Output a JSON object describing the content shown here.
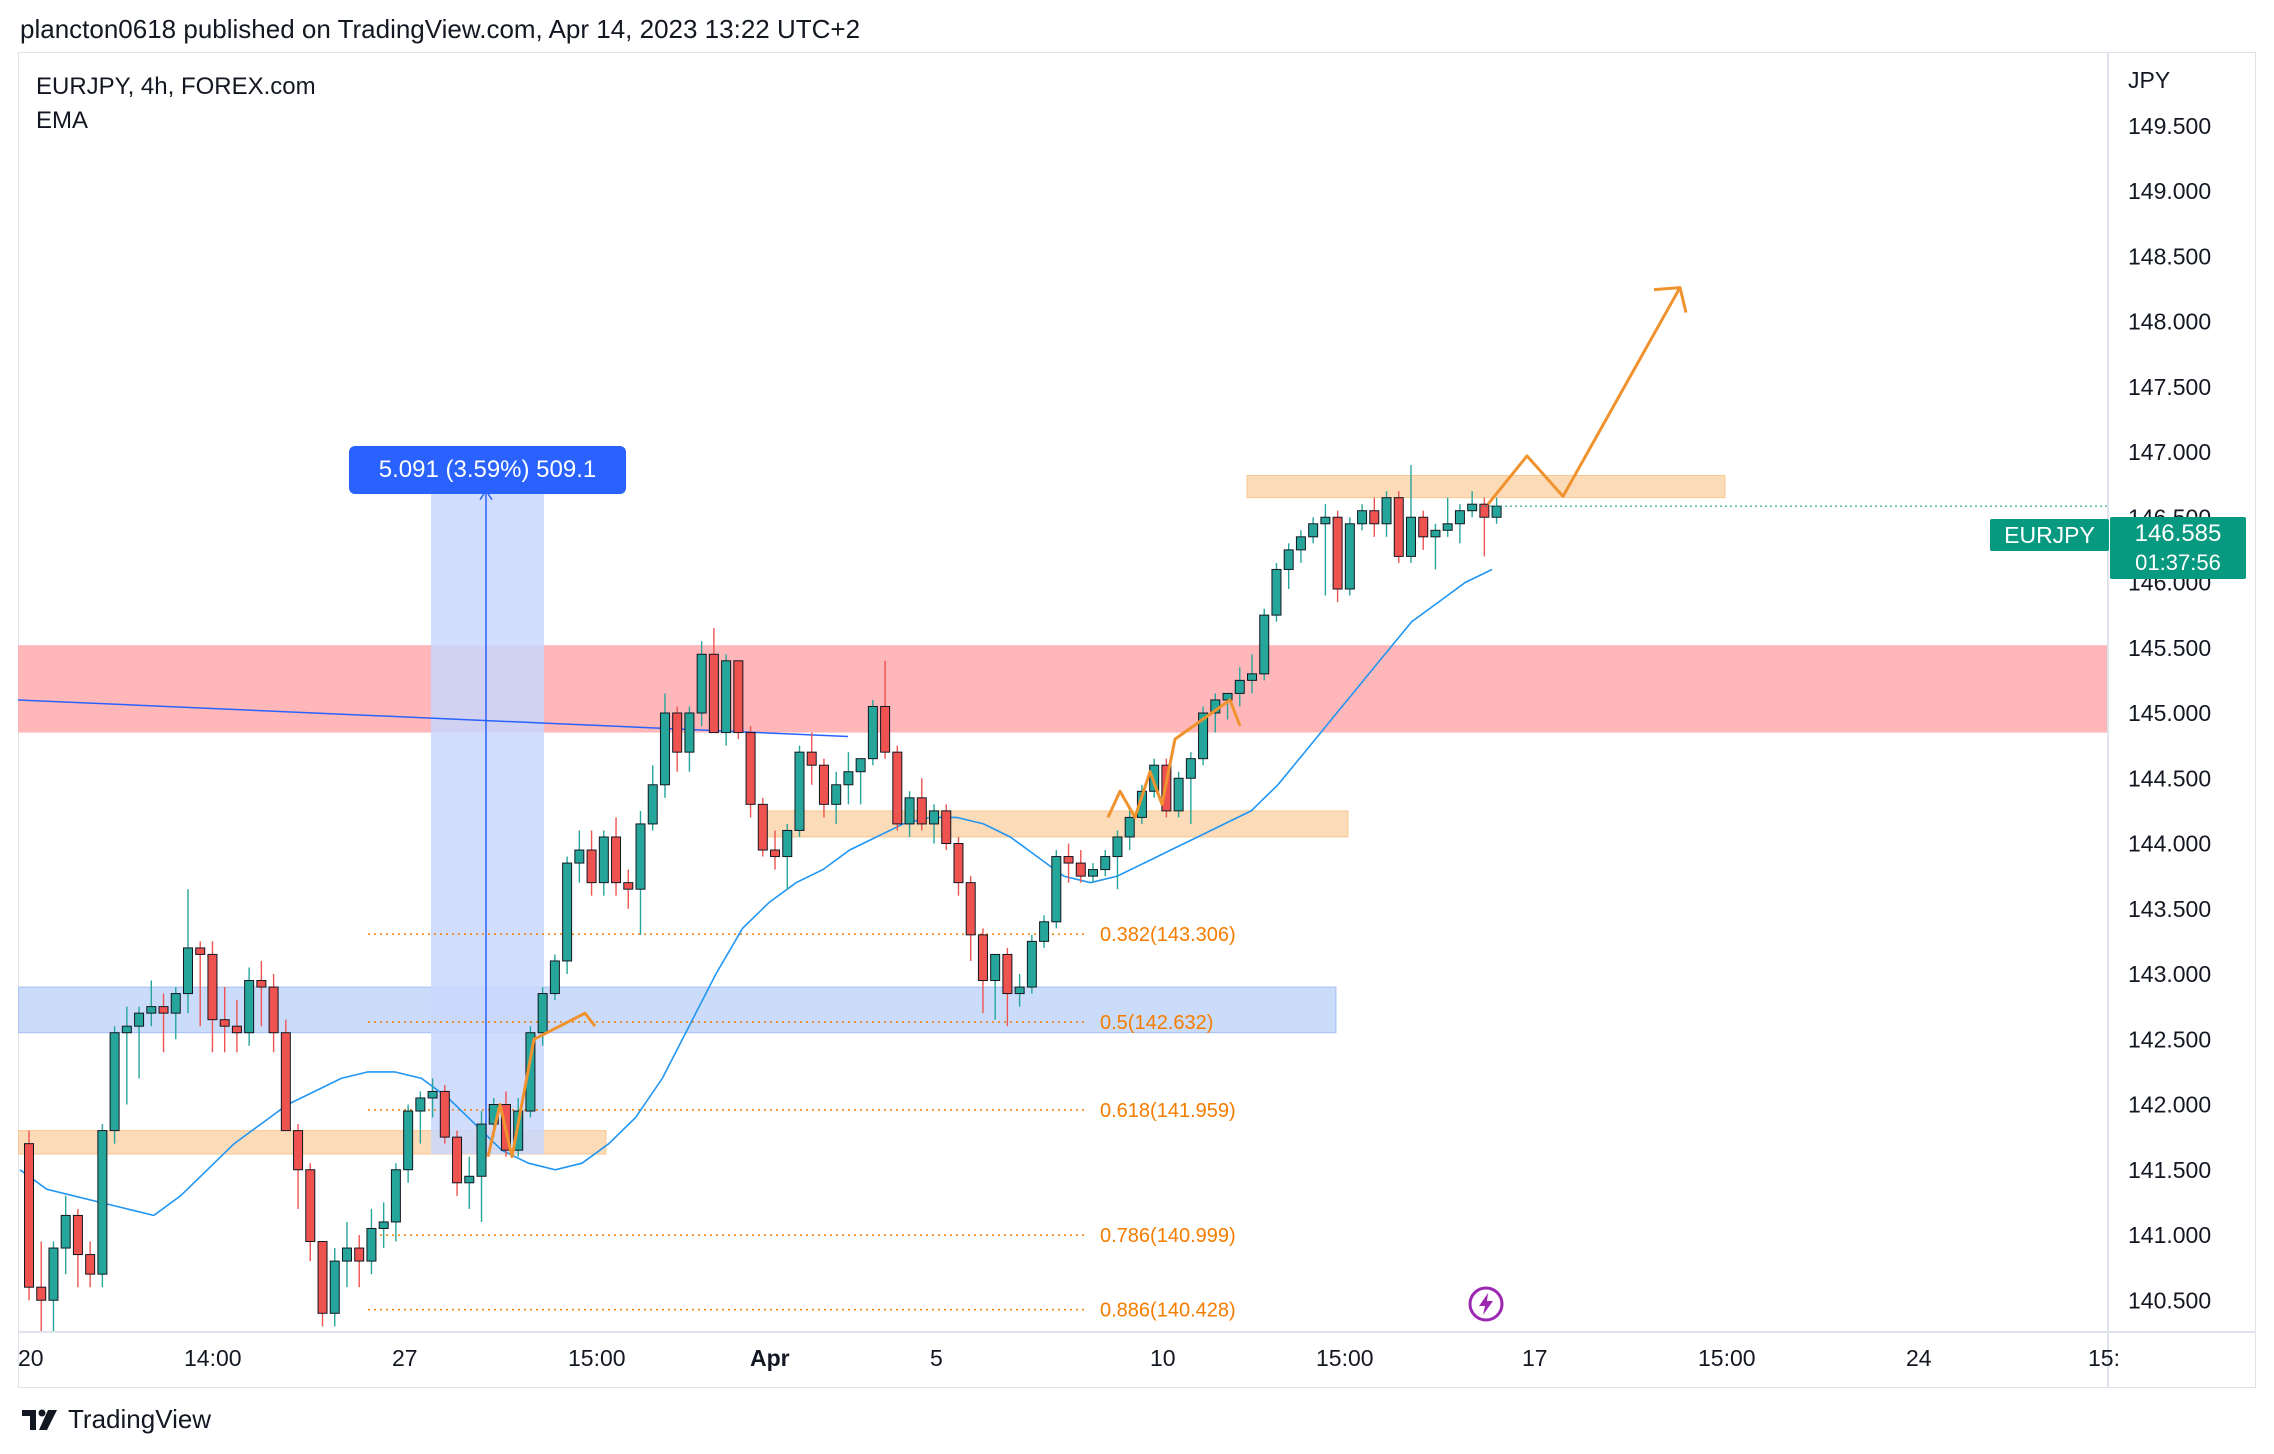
{
  "header": {
    "publish_text": "plancton0618 published on TradingView.com, Apr 14, 2023 13:22 UTC+2"
  },
  "legend": {
    "symbol_line": "EURJPY, 4h, FOREX.com",
    "indicator": "EMA"
  },
  "axis": {
    "currency_label": "JPY"
  },
  "measure": {
    "label": "5.091 (3.59%) 509.1"
  },
  "symbol_badge": "EURJPY",
  "last_price": {
    "value": "146.585",
    "countdown": "01:37:56"
  },
  "brand": {
    "name": "TradingView"
  },
  "colors": {
    "up": "#26a69a",
    "down": "#ef5350",
    "ema": "#2196f3",
    "resistance_zone": "#ffb3b5",
    "support_zone": "#bad0f8",
    "orange_zone": "#fbd5ab",
    "projection": "#f0922e",
    "measure_fill": "#c9d7fb",
    "measure_line": "#2962ff",
    "fib": "#f57c00",
    "badge": "#089981"
  },
  "chart_data": {
    "type": "candlestick",
    "title": "EURJPY, 4h, FOREX.com",
    "ylabel": "JPY",
    "ylim": [
      140.45,
      150.1
    ],
    "y_ticks": [
      "149.500",
      "149.000",
      "148.500",
      "148.000",
      "147.500",
      "147.000",
      "146.500",
      "146.000",
      "145.500",
      "145.000",
      "144.500",
      "144.000",
      "143.500",
      "143.000",
      "142.500",
      "142.000",
      "141.500",
      "141.000",
      "140.500"
    ],
    "x_ticks": [
      "20",
      "14:00",
      "27",
      "15:00",
      "Apr",
      "5",
      "10",
      "15:00",
      "17",
      "15:00",
      "24",
      "15:"
    ],
    "candles": [
      [
        141.7,
        141.8,
        140.5,
        140.6
      ],
      [
        140.6,
        140.95,
        140.2,
        140.5
      ],
      [
        140.5,
        140.95,
        140.2,
        140.9
      ],
      [
        140.9,
        141.3,
        140.7,
        141.15
      ],
      [
        141.15,
        141.2,
        140.6,
        140.85
      ],
      [
        140.85,
        140.95,
        140.6,
        140.7
      ],
      [
        140.7,
        141.85,
        140.6,
        141.8
      ],
      [
        141.8,
        142.6,
        141.7,
        142.55
      ],
      [
        142.55,
        142.75,
        142.0,
        142.6
      ],
      [
        142.6,
        142.75,
        142.2,
        142.7
      ],
      [
        142.7,
        142.95,
        142.6,
        142.75
      ],
      [
        142.75,
        142.85,
        142.4,
        142.7
      ],
      [
        142.7,
        142.9,
        142.5,
        142.85
      ],
      [
        142.85,
        143.65,
        142.7,
        143.2
      ],
      [
        143.2,
        143.25,
        142.6,
        143.15
      ],
      [
        143.15,
        143.25,
        142.4,
        142.65
      ],
      [
        142.65,
        142.9,
        142.4,
        142.6
      ],
      [
        142.6,
        142.8,
        142.4,
        142.55
      ],
      [
        142.55,
        143.05,
        142.45,
        142.95
      ],
      [
        142.95,
        143.1,
        142.6,
        142.9
      ],
      [
        142.9,
        143.0,
        142.4,
        142.55
      ],
      [
        142.55,
        142.65,
        141.8,
        141.8
      ],
      [
        141.8,
        141.85,
        141.2,
        141.5
      ],
      [
        141.5,
        141.55,
        140.8,
        140.95
      ],
      [
        140.95,
        140.95,
        140.3,
        140.4
      ],
      [
        140.4,
        140.9,
        140.3,
        140.8
      ],
      [
        140.8,
        141.1,
        140.6,
        140.9
      ],
      [
        140.9,
        141.0,
        140.6,
        140.8
      ],
      [
        140.8,
        141.2,
        140.7,
        141.05
      ],
      [
        141.05,
        141.25,
        140.9,
        141.1
      ],
      [
        141.1,
        141.55,
        140.95,
        141.5
      ],
      [
        141.5,
        142.0,
        141.4,
        141.95
      ],
      [
        141.95,
        142.1,
        141.7,
        142.05
      ],
      [
        142.05,
        142.2,
        141.9,
        142.1
      ],
      [
        142.1,
        142.15,
        141.7,
        141.75
      ],
      [
        141.75,
        141.8,
        141.3,
        141.4
      ],
      [
        141.4,
        141.6,
        141.2,
        141.45
      ],
      [
        141.45,
        141.95,
        141.1,
        141.85
      ],
      [
        141.85,
        142.05,
        141.75,
        142.0
      ],
      [
        142.0,
        142.1,
        141.6,
        141.65
      ],
      [
        141.65,
        142.05,
        141.6,
        141.95
      ],
      [
        141.95,
        142.6,
        141.9,
        142.55
      ],
      [
        142.55,
        142.9,
        142.45,
        142.85
      ],
      [
        142.85,
        143.15,
        142.8,
        143.1
      ],
      [
        143.1,
        143.9,
        143.0,
        143.85
      ],
      [
        143.85,
        144.1,
        143.7,
        143.95
      ],
      [
        143.95,
        144.1,
        143.6,
        143.7
      ],
      [
        143.7,
        144.1,
        143.6,
        144.05
      ],
      [
        144.05,
        144.2,
        143.6,
        143.7
      ],
      [
        143.7,
        143.8,
        143.5,
        143.65
      ],
      [
        143.65,
        144.25,
        143.3,
        144.15
      ],
      [
        144.15,
        144.6,
        144.1,
        144.45
      ],
      [
        144.45,
        145.15,
        144.35,
        145.0
      ],
      [
        145.0,
        145.05,
        144.55,
        144.7
      ],
      [
        144.7,
        145.05,
        144.55,
        145.0
      ],
      [
        145.0,
        145.55,
        144.9,
        145.45
      ],
      [
        145.45,
        145.65,
        144.9,
        144.85
      ],
      [
        144.85,
        145.45,
        144.75,
        145.4
      ],
      [
        145.4,
        145.4,
        144.8,
        144.85
      ],
      [
        144.85,
        144.9,
        144.2,
        144.3
      ],
      [
        144.3,
        144.35,
        143.9,
        143.95
      ],
      [
        143.95,
        144.1,
        143.8,
        143.9
      ],
      [
        143.9,
        144.15,
        143.65,
        144.1
      ],
      [
        144.1,
        144.75,
        144.05,
        144.7
      ],
      [
        144.7,
        144.85,
        144.45,
        144.6
      ],
      [
        144.6,
        144.65,
        144.2,
        144.3
      ],
      [
        144.3,
        144.55,
        144.15,
        144.45
      ],
      [
        144.45,
        144.7,
        144.3,
        144.55
      ],
      [
        144.55,
        144.65,
        144.3,
        144.65
      ],
      [
        144.65,
        145.1,
        144.6,
        145.05
      ],
      [
        145.05,
        145.4,
        144.65,
        144.7
      ],
      [
        144.7,
        144.75,
        144.1,
        144.15
      ],
      [
        144.15,
        144.4,
        144.05,
        144.35
      ],
      [
        144.35,
        144.5,
        144.1,
        144.15
      ],
      [
        144.15,
        144.3,
        144.0,
        144.25
      ],
      [
        144.25,
        144.3,
        143.95,
        144.0
      ],
      [
        144.0,
        144.05,
        143.6,
        143.7
      ],
      [
        143.7,
        143.75,
        143.1,
        143.3
      ],
      [
        143.3,
        143.35,
        142.7,
        142.95
      ],
      [
        142.95,
        143.15,
        142.65,
        143.15
      ],
      [
        143.15,
        143.2,
        142.6,
        142.85
      ],
      [
        142.85,
        143.0,
        142.75,
        142.9
      ],
      [
        142.9,
        143.3,
        142.85,
        143.25
      ],
      [
        143.25,
        143.45,
        143.2,
        143.4
      ],
      [
        143.4,
        143.95,
        143.35,
        143.9
      ],
      [
        143.9,
        144.0,
        143.7,
        143.85
      ],
      [
        143.85,
        143.95,
        143.7,
        143.75
      ],
      [
        143.75,
        143.85,
        143.7,
        143.8
      ],
      [
        143.8,
        143.95,
        143.75,
        143.9
      ],
      [
        143.9,
        144.1,
        143.65,
        144.05
      ],
      [
        144.05,
        144.25,
        143.95,
        144.2
      ],
      [
        144.2,
        144.45,
        144.15,
        144.4
      ],
      [
        144.4,
        144.65,
        144.35,
        144.6
      ],
      [
        144.6,
        144.65,
        144.2,
        144.25
      ],
      [
        144.25,
        144.55,
        144.2,
        144.5
      ],
      [
        144.5,
        144.7,
        144.15,
        144.65
      ],
      [
        144.65,
        145.05,
        144.6,
        145.0
      ],
      [
        145.0,
        145.15,
        144.85,
        145.1
      ],
      [
        145.1,
        145.15,
        144.95,
        145.15
      ],
      [
        145.15,
        145.35,
        145.05,
        145.25
      ],
      [
        145.25,
        145.45,
        145.15,
        145.3
      ],
      [
        145.3,
        145.8,
        145.25,
        145.75
      ],
      [
        145.75,
        146.15,
        145.7,
        146.1
      ],
      [
        146.1,
        146.3,
        145.95,
        146.25
      ],
      [
        146.25,
        146.4,
        146.15,
        146.35
      ],
      [
        146.35,
        146.5,
        146.3,
        146.45
      ],
      [
        146.45,
        146.6,
        145.9,
        146.5
      ],
      [
        146.5,
        146.55,
        145.85,
        145.95
      ],
      [
        145.95,
        146.5,
        145.9,
        146.45
      ],
      [
        146.45,
        146.6,
        146.4,
        146.55
      ],
      [
        146.55,
        146.65,
        146.35,
        146.45
      ],
      [
        146.45,
        146.7,
        146.35,
        146.65
      ],
      [
        146.65,
        146.7,
        146.15,
        146.2
      ],
      [
        146.2,
        146.9,
        146.15,
        146.5
      ],
      [
        146.5,
        146.55,
        146.25,
        146.35
      ],
      [
        146.35,
        146.45,
        146.1,
        146.4
      ],
      [
        146.4,
        146.65,
        146.35,
        146.45
      ],
      [
        146.45,
        146.6,
        146.3,
        146.55
      ],
      [
        146.55,
        146.7,
        146.5,
        146.6
      ],
      [
        146.6,
        146.65,
        146.2,
        146.5
      ],
      [
        146.5,
        146.65,
        146.45,
        146.585
      ]
    ],
    "ema": [
      141.5,
      141.35,
      141.3,
      141.25,
      141.2,
      141.15,
      141.3,
      141.5,
      141.7,
      141.85,
      142.0,
      142.1,
      142.2,
      142.25,
      142.25,
      142.2,
      142.05,
      141.85,
      141.65,
      141.55,
      141.5,
      141.55,
      141.7,
      141.9,
      142.2,
      142.6,
      143.0,
      143.35,
      143.55,
      143.7,
      143.8,
      143.95,
      144.05,
      144.15,
      144.2,
      144.2,
      144.15,
      144.05,
      143.9,
      143.75,
      143.7,
      143.75,
      143.85,
      143.95,
      144.05,
      144.15,
      144.25,
      144.45,
      144.7,
      144.95,
      145.2,
      145.45,
      145.7,
      145.85,
      146.0,
      146.1
    ],
    "zones": [
      {
        "name": "resistance",
        "y0": 144.85,
        "y1": 145.52
      },
      {
        "name": "support",
        "y0": 142.55,
        "y1": 142.9
      },
      {
        "name": "left-orange",
        "y0": 141.62,
        "y1": 141.8
      },
      {
        "name": "mid-orange",
        "y0": 144.05,
        "y1": 144.25
      },
      {
        "name": "top-orange",
        "y0": 146.65,
        "y1": 146.82
      }
    ],
    "trendline": {
      "from": 145.1,
      "to": 144.82
    },
    "fib_levels": [
      {
        "label": "0.382(143.306)",
        "value": 143.306
      },
      {
        "label": "0.5(142.632)",
        "value": 142.632
      },
      {
        "label": "0.618(141.959)",
        "value": 141.959
      },
      {
        "label": "0.786(140.999)",
        "value": 140.999
      },
      {
        "label": "0.886(140.428)",
        "value": 140.428
      }
    ],
    "measure": {
      "from": 141.62,
      "to": 146.711,
      "change": "5.091 (3.59%) 509.1"
    },
    "projection": [
      146.6,
      146.97,
      146.66,
      148.26,
      148.1
    ],
    "small_projections": [
      [
        141.6,
        142.0,
        141.6,
        142.5,
        142.7,
        142.6
      ],
      [
        144.2,
        144.4,
        144.2,
        144.55,
        144.3,
        144.8,
        145.1,
        144.9
      ]
    ]
  }
}
